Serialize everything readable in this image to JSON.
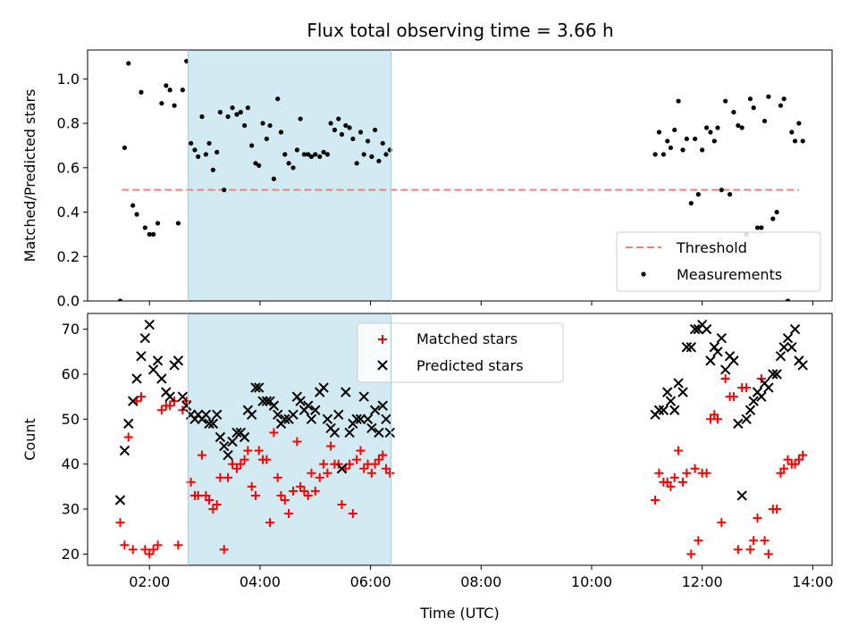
{
  "title": "Flux total observing time = 3.66 h",
  "colors": {
    "threshold": "#f08080",
    "measurement": "#000000",
    "matched": "#ff0000",
    "predicted": "#000000",
    "shade": "#add8e6"
  },
  "chart_data": [
    {
      "type": "scatter",
      "ylabel": "Matched/Predicted stars",
      "ylim": [
        0,
        1.13
      ],
      "xlim_hours": [
        0.88,
        14.35
      ],
      "shaded_span_hours": [
        2.7,
        6.37
      ],
      "legend": {
        "placement": "lower-right",
        "entries": [
          "Threshold",
          "Measurements"
        ]
      },
      "yticks": [
        "0.0",
        "0.2",
        "0.4",
        "0.6",
        "0.8",
        "1.0"
      ],
      "threshold": {
        "name": "Threshold",
        "y": 0.5,
        "x": [
          1.5,
          13.75
        ]
      },
      "series": [
        {
          "name": "Measurements",
          "x": [
            1.47,
            1.55,
            1.62,
            1.7,
            1.77,
            1.85,
            1.92,
            2.0,
            2.07,
            2.15,
            2.22,
            2.3,
            2.37,
            2.45,
            2.52,
            2.6,
            2.67,
            2.75,
            2.82,
            2.88,
            2.95,
            3.02,
            3.08,
            3.15,
            3.22,
            3.28,
            3.35,
            3.42,
            3.5,
            3.58,
            3.65,
            3.72,
            3.78,
            3.85,
            3.92,
            3.98,
            4.05,
            4.12,
            4.18,
            4.25,
            4.32,
            4.38,
            4.45,
            4.52,
            4.6,
            4.67,
            4.73,
            4.8,
            4.87,
            4.93,
            5.0,
            5.08,
            5.15,
            5.22,
            5.28,
            5.35,
            5.42,
            5.48,
            5.55,
            5.62,
            5.68,
            5.75,
            5.82,
            5.88,
            5.95,
            6.02,
            6.08,
            6.15,
            6.22,
            6.28,
            6.35,
            11.15,
            11.22,
            11.3,
            11.37,
            11.43,
            11.5,
            11.57,
            11.65,
            11.72,
            11.8,
            11.87,
            11.93,
            12.0,
            12.08,
            12.15,
            12.22,
            12.28,
            12.35,
            12.42,
            12.5,
            12.57,
            12.65,
            12.72,
            12.8,
            12.87,
            12.93,
            13.0,
            13.07,
            13.13,
            13.2,
            13.28,
            13.35,
            13.42,
            13.48,
            13.55,
            13.62,
            13.68,
            13.75,
            13.82
          ],
          "y": [
            0.0,
            0.69,
            1.07,
            0.43,
            0.39,
            0.94,
            0.33,
            0.3,
            0.3,
            0.35,
            0.89,
            0.97,
            0.95,
            0.88,
            0.35,
            0.95,
            1.08,
            0.71,
            0.68,
            0.65,
            0.83,
            0.66,
            0.71,
            0.59,
            0.67,
            0.85,
            0.5,
            0.83,
            0.87,
            0.84,
            0.85,
            0.79,
            0.87,
            0.7,
            0.62,
            0.61,
            0.8,
            0.73,
            0.79,
            0.55,
            0.91,
            0.76,
            0.66,
            0.62,
            0.6,
            0.68,
            0.82,
            0.66,
            0.66,
            0.65,
            0.66,
            0.65,
            0.67,
            0.66,
            0.8,
            0.77,
            0.82,
            0.75,
            0.79,
            0.78,
            0.73,
            0.62,
            0.76,
            0.66,
            0.72,
            0.65,
            0.77,
            0.63,
            0.71,
            0.66,
            0.68,
            0.66,
            0.76,
            0.66,
            0.72,
            0.69,
            0.77,
            0.9,
            0.68,
            0.73,
            0.44,
            0.73,
            0.48,
            0.68,
            0.78,
            0.76,
            0.72,
            0.78,
            0.5,
            0.9,
            0.48,
            0.85,
            0.79,
            0.78,
            0.3,
            0.91,
            0.87,
            0.33,
            0.33,
            0.81,
            0.92,
            0.37,
            0.4,
            0.88,
            0.91,
            0.0,
            0.76,
            0.72,
            0.8,
            0.72
          ],
          "marker": "dot"
        }
      ]
    },
    {
      "type": "scatter",
      "ylabel": "Count",
      "xlabel": "Time (UTC)",
      "ylim": [
        17.5,
        73.5
      ],
      "xlim_hours": [
        0.88,
        14.35
      ],
      "shaded_span_hours": [
        2.7,
        6.37
      ],
      "legend": {
        "placement": "top-center",
        "entries": [
          "Matched stars",
          "Predicted stars"
        ]
      },
      "yticks": [
        "20",
        "30",
        "40",
        "50",
        "60",
        "70"
      ],
      "xticks": [
        "02:00",
        "04:00",
        "06:00",
        "08:00",
        "10:00",
        "12:00",
        "14:00"
      ],
      "series": [
        {
          "name": "Matched stars",
          "marker": "plus",
          "x": [
            1.47,
            1.55,
            1.62,
            1.7,
            1.77,
            1.85,
            1.92,
            2.0,
            2.07,
            2.15,
            2.22,
            2.3,
            2.37,
            2.45,
            2.52,
            2.6,
            2.67,
            2.75,
            2.82,
            2.88,
            2.95,
            3.02,
            3.08,
            3.15,
            3.22,
            3.28,
            3.35,
            3.42,
            3.5,
            3.58,
            3.65,
            3.72,
            3.78,
            3.85,
            3.92,
            3.98,
            4.05,
            4.12,
            4.18,
            4.25,
            4.32,
            4.38,
            4.45,
            4.52,
            4.6,
            4.67,
            4.73,
            4.8,
            4.87,
            4.93,
            5.0,
            5.08,
            5.15,
            5.22,
            5.28,
            5.35,
            5.42,
            5.48,
            5.55,
            5.62,
            5.68,
            5.75,
            5.82,
            5.88,
            5.95,
            6.02,
            6.08,
            6.15,
            6.22,
            6.28,
            6.35,
            11.15,
            11.22,
            11.3,
            11.37,
            11.43,
            11.5,
            11.57,
            11.65,
            11.72,
            11.8,
            11.87,
            11.93,
            12.0,
            12.08,
            12.15,
            12.22,
            12.28,
            12.35,
            12.42,
            12.5,
            12.57,
            12.65,
            12.72,
            12.8,
            12.87,
            12.93,
            13.0,
            13.07,
            13.13,
            13.2,
            13.28,
            13.35,
            13.42,
            13.48,
            13.55,
            13.62,
            13.68,
            13.75,
            13.82
          ],
          "y": [
            27,
            22,
            46,
            21,
            54,
            55,
            21,
            20,
            21,
            22,
            52,
            53,
            53,
            54,
            22,
            52,
            54,
            36,
            33,
            33,
            42,
            33,
            32,
            30,
            31,
            37,
            21,
            37,
            40,
            39,
            40,
            41,
            43,
            35,
            33,
            43,
            41,
            41,
            27,
            47,
            37,
            33,
            32,
            29,
            34,
            45,
            35,
            34,
            33,
            38,
            34,
            37,
            40,
            38,
            44,
            40,
            40,
            31,
            39,
            40,
            29,
            41,
            43,
            39,
            40,
            38,
            40,
            41,
            42,
            39,
            38,
            32,
            38,
            36,
            36,
            35,
            37,
            43,
            36,
            38,
            20,
            39,
            23,
            38,
            38,
            50,
            51,
            50,
            27,
            59,
            55,
            55,
            21,
            57,
            57,
            21,
            23,
            28,
            59,
            23,
            20,
            30,
            30,
            38,
            39,
            41,
            40,
            40,
            41,
            42
          ],
          "marker_color": "#ff0000"
        },
        {
          "name": "Predicted stars",
          "marker": "x",
          "x": [
            1.47,
            1.55,
            1.62,
            1.7,
            1.77,
            1.85,
            1.92,
            2.0,
            2.07,
            2.15,
            2.22,
            2.3,
            2.37,
            2.45,
            2.52,
            2.6,
            2.67,
            2.75,
            2.82,
            2.88,
            2.95,
            3.02,
            3.08,
            3.15,
            3.22,
            3.28,
            3.35,
            3.42,
            3.5,
            3.58,
            3.65,
            3.72,
            3.78,
            3.85,
            3.92,
            3.98,
            4.05,
            4.12,
            4.18,
            4.25,
            4.32,
            4.38,
            4.45,
            4.52,
            4.6,
            4.67,
            4.73,
            4.8,
            4.87,
            4.93,
            5.0,
            5.08,
            5.15,
            5.22,
            5.28,
            5.35,
            5.42,
            5.48,
            5.55,
            5.62,
            5.68,
            5.75,
            5.82,
            5.88,
            5.95,
            6.02,
            6.08,
            6.15,
            6.22,
            6.28,
            6.35,
            11.15,
            11.22,
            11.3,
            11.37,
            11.43,
            11.5,
            11.57,
            11.65,
            11.72,
            11.8,
            11.87,
            11.93,
            12.0,
            12.08,
            12.15,
            12.22,
            12.28,
            12.35,
            12.42,
            12.5,
            12.57,
            12.65,
            12.72,
            12.8,
            12.87,
            12.93,
            13.0,
            13.07,
            13.13,
            13.2,
            13.28,
            13.35,
            13.42,
            13.48,
            13.55,
            13.62,
            13.68,
            13.75,
            13.82
          ],
          "y": [
            32,
            43,
            49,
            54,
            59,
            64,
            68,
            71,
            61,
            63,
            59,
            56,
            55,
            62,
            63,
            55,
            53,
            51,
            50,
            51,
            50,
            51,
            49,
            49,
            51,
            46,
            44,
            42,
            45,
            47,
            47,
            46,
            52,
            51,
            57,
            57,
            54,
            54,
            54,
            53,
            51,
            49,
            50,
            50,
            51,
            55,
            54,
            52,
            53,
            50,
            52,
            56,
            57,
            50,
            48,
            47,
            51,
            39,
            56,
            47,
            49,
            50,
            50,
            55,
            50,
            48,
            52,
            47,
            53,
            50,
            47,
            51,
            52,
            52,
            56,
            54,
            52,
            58,
            56,
            66,
            66,
            70,
            70,
            71,
            70,
            63,
            66,
            65,
            68,
            61,
            64,
            63,
            49,
            33,
            50,
            52,
            54,
            56,
            55,
            58,
            57,
            60,
            60,
            64,
            66,
            68,
            66,
            70,
            63,
            62
          ],
          "marker_color": "#000000"
        }
      ]
    }
  ]
}
